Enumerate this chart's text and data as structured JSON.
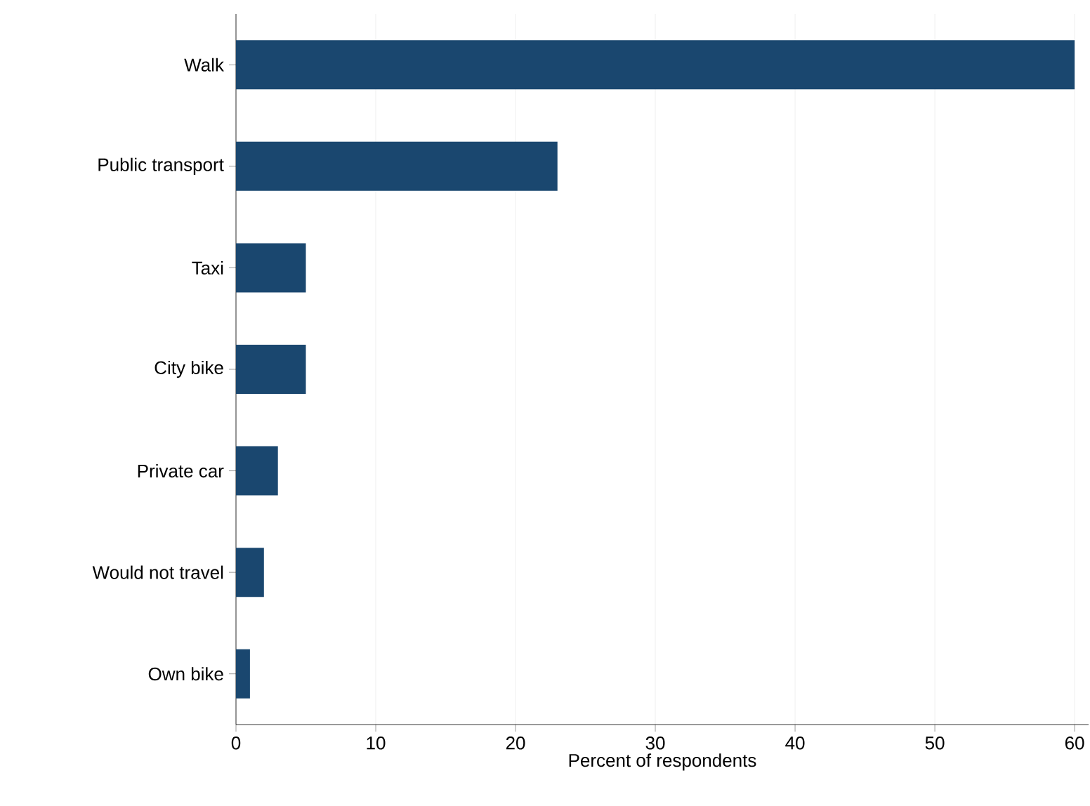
{
  "chart_data": {
    "type": "bar",
    "orientation": "horizontal",
    "xlabel": "Percent of respondents",
    "categories": [
      "Walk",
      "Public transport",
      "Taxi",
      "City bike",
      "Private car",
      "Would not travel",
      "Own bike"
    ],
    "values": [
      60,
      23,
      5,
      5,
      3,
      2,
      1
    ],
    "color": "#1a476f",
    "xlim": [
      0,
      61
    ],
    "xticks": [
      0,
      10,
      20,
      30,
      40,
      50,
      60
    ],
    "grid": "x"
  }
}
